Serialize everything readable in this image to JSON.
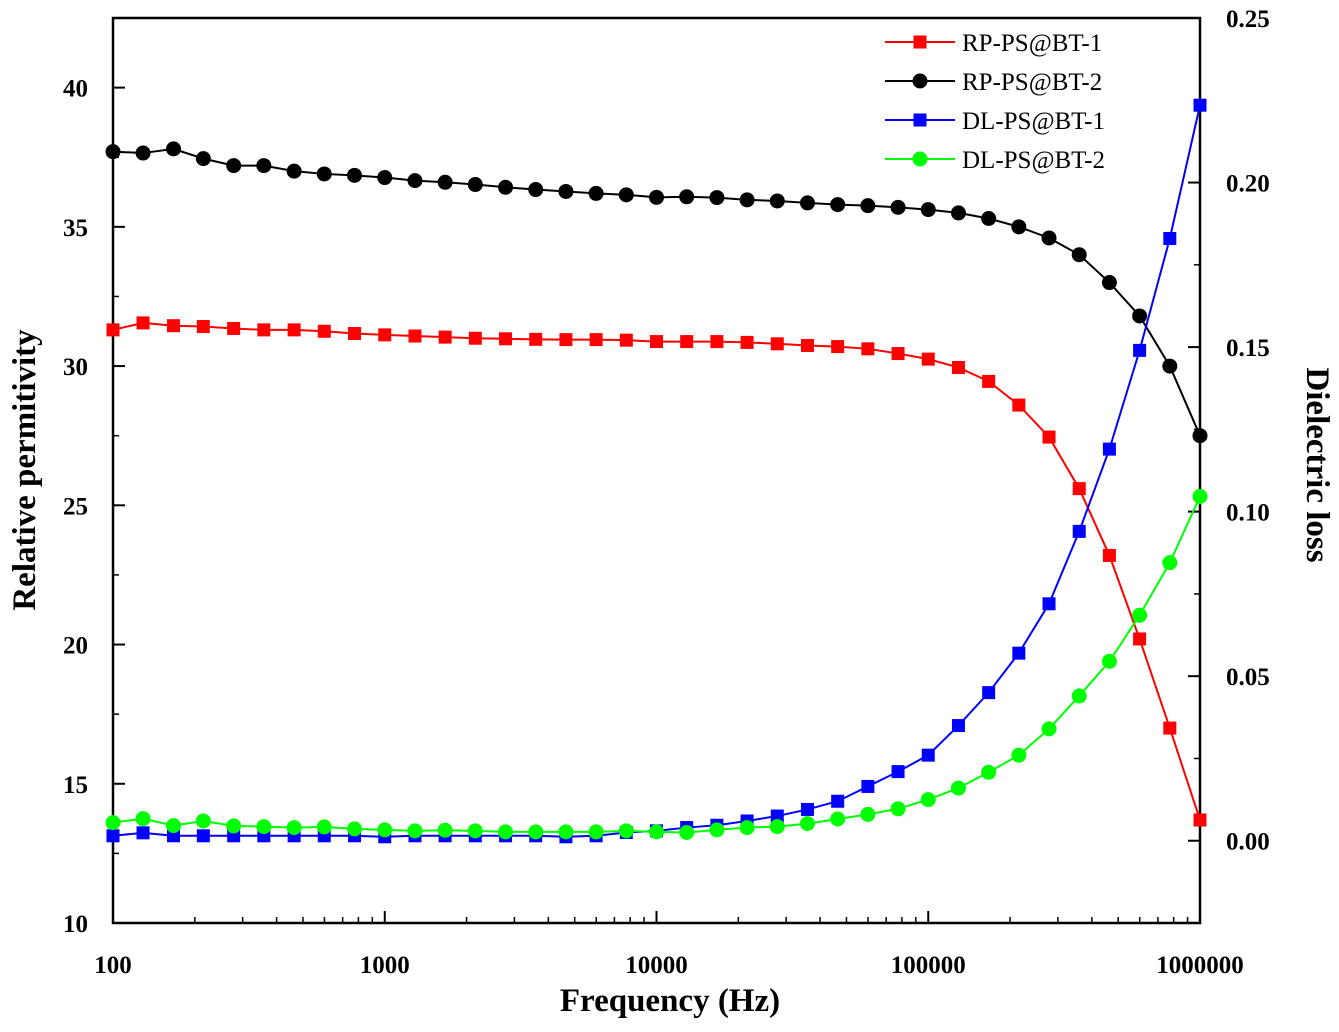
{
  "chart_data": {
    "type": "line",
    "title": "",
    "xlabel": "Frequency (Hz)",
    "ylabel": "Relative permitivity",
    "y2label": "Dielectric loss",
    "xscale": "log",
    "xlim": [
      100,
      1000000
    ],
    "ylim": [
      10,
      42.5
    ],
    "y2lim": [
      -0.025,
      0.25
    ],
    "x_ticks": [
      "100",
      "1000",
      "10000",
      "100000",
      "1000000"
    ],
    "y_ticks": [
      "10",
      "15",
      "20",
      "25",
      "30",
      "35",
      "40"
    ],
    "y2_ticks": [
      "0.00",
      "0.05",
      "0.10",
      "0.15",
      "0.20",
      "0.25"
    ],
    "grid": false,
    "legend_position": "top-right",
    "x": [
      100,
      129,
      167,
      215,
      278,
      359,
      464,
      599,
      774,
      1000,
      1292,
      1668,
      2154,
      2783,
      3594,
      4642,
      5995,
      7743,
      10000,
      12915,
      16681,
      21544,
      27826,
      35938,
      46416,
      59948,
      77426,
      100000,
      129155,
      166810,
      215443,
      278256,
      359381,
      464159,
      599484,
      774264,
      1000000
    ],
    "series": [
      {
        "name": "RP-PS@BT-1",
        "axis": "left",
        "color": "#ff0000",
        "marker": "square",
        "values": [
          31.3,
          31.55,
          31.45,
          31.42,
          31.35,
          31.3,
          31.3,
          31.25,
          31.17,
          31.12,
          31.08,
          31.04,
          31.0,
          30.98,
          30.96,
          30.95,
          30.95,
          30.93,
          30.88,
          30.88,
          30.88,
          30.85,
          30.8,
          30.74,
          30.7,
          30.62,
          30.45,
          30.25,
          29.95,
          29.45,
          28.6,
          27.45,
          25.6,
          23.2,
          20.2,
          17.0,
          13.7
        ]
      },
      {
        "name": "RP-PS@BT-2",
        "axis": "left",
        "color": "#000000",
        "marker": "circle",
        "values": [
          37.7,
          37.65,
          37.8,
          37.45,
          37.2,
          37.2,
          37.0,
          36.9,
          36.85,
          36.77,
          36.66,
          36.6,
          36.52,
          36.42,
          36.34,
          36.27,
          36.2,
          36.15,
          36.06,
          36.08,
          36.05,
          35.97,
          35.93,
          35.86,
          35.8,
          35.76,
          35.7,
          35.62,
          35.5,
          35.3,
          35.0,
          34.6,
          34.0,
          33.0,
          31.8,
          30.0,
          27.5
        ]
      },
      {
        "name": "DL-PS@BT-1",
        "axis": "right",
        "color": "#0000ff",
        "marker": "square",
        "values": [
          0.0015,
          0.0024,
          0.0015,
          0.0015,
          0.0015,
          0.0015,
          0.0015,
          0.0015,
          0.0015,
          0.0012,
          0.0015,
          0.0015,
          0.0015,
          0.0015,
          0.0015,
          0.0012,
          0.0015,
          0.0025,
          0.003,
          0.004,
          0.0047,
          0.006,
          0.0075,
          0.0095,
          0.012,
          0.0165,
          0.021,
          0.026,
          0.035,
          0.045,
          0.057,
          0.072,
          0.094,
          0.119,
          0.149,
          0.183,
          0.2235
        ]
      },
      {
        "name": "DL-PS@BT-2",
        "axis": "right",
        "color": "#00ff00",
        "marker": "circle",
        "values": [
          0.0055,
          0.0067,
          0.0046,
          0.006,
          0.0045,
          0.0043,
          0.004,
          0.0042,
          0.0036,
          0.0033,
          0.003,
          0.0032,
          0.003,
          0.0027,
          0.0027,
          0.0027,
          0.0027,
          0.003,
          0.0027,
          0.0025,
          0.0033,
          0.004,
          0.0043,
          0.0052,
          0.0066,
          0.008,
          0.0097,
          0.0125,
          0.016,
          0.0208,
          0.026,
          0.034,
          0.044,
          0.0545,
          0.0685,
          0.0845,
          0.1046
        ]
      }
    ]
  }
}
